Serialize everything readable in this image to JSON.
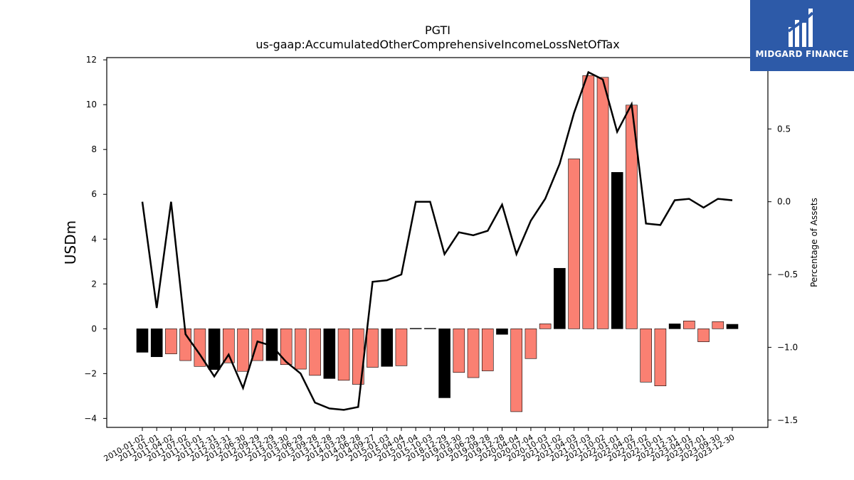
{
  "chart_data": {
    "type": "bar",
    "title": "PGTI",
    "subtitle": "us-gaap:AccumulatedOtherComprehensiveIncomeLossNetOfTax",
    "ylabel": "USDm",
    "y2label": "Percentage of Assets",
    "ylim": [
      -4.4,
      12.1
    ],
    "y2lim": [
      -1.55,
      0.99
    ],
    "yticks": [
      -4,
      -2,
      0,
      2,
      4,
      6,
      8,
      10,
      12
    ],
    "y2ticks": [
      -1.5,
      -1.0,
      -0.5,
      0.0,
      0.5
    ],
    "categories": [
      "2010-01-02",
      "2011-01-01",
      "2011-04-02",
      "2011-07-02",
      "2011-10-01",
      "2011-12-31",
      "2012-03-31",
      "2012-06-30",
      "2012-09-29",
      "2012-12-29",
      "2013-03-30",
      "2013-06-29",
      "2013-09-28",
      "2013-12-28",
      "2014-03-29",
      "2014-06-28",
      "2014-09-27",
      "2015-01-03",
      "2015-04-04",
      "2015-07-04",
      "2015-10-03",
      "2018-12-29",
      "2019-03-30",
      "2019-06-29",
      "2019-09-28",
      "2019-12-28",
      "2020-04-04",
      "2020-07-04",
      "2020-10-03",
      "2021-01-02",
      "2021-04-03",
      "2021-07-03",
      "2021-10-02",
      "2022-01-01",
      "2022-04-02",
      "2022-07-02",
      "2022-10-01",
      "2022-12-31",
      "2023-04-01",
      "2023-07-01",
      "2023-09-30",
      "2023-12-30"
    ],
    "series": [
      {
        "values": [
          -1.05,
          -1.25,
          -1.12,
          -1.42,
          -1.68,
          -1.82,
          -1.52,
          -1.9,
          -1.42,
          -1.42,
          -1.6,
          -1.8,
          -2.08,
          -2.22,
          -2.3,
          -2.48,
          -1.72,
          -1.68,
          -1.65,
          0.02,
          0.02,
          -3.08,
          -1.95,
          -2.18,
          -1.88,
          -0.25,
          -3.7,
          -1.33,
          0.22,
          2.7,
          7.58,
          11.3,
          11.22,
          6.98,
          9.98,
          -2.38,
          -2.55,
          0.22,
          0.35,
          -0.58,
          0.32,
          0.2
        ],
        "colors": [
          "#000000",
          "#000000",
          "#fa8072",
          "#fa8072",
          "#fa8072",
          "#000000",
          "#fa8072",
          "#fa8072",
          "#fa8072",
          "#000000",
          "#fa8072",
          "#fa8072",
          "#fa8072",
          "#000000",
          "#fa8072",
          "#fa8072",
          "#fa8072",
          "#000000",
          "#fa8072",
          "#000000",
          "#000000",
          "#000000",
          "#fa8072",
          "#fa8072",
          "#fa8072",
          "#000000",
          "#fa8072",
          "#fa8072",
          "#fa8072",
          "#000000",
          "#fa8072",
          "#fa8072",
          "#fa8072",
          "#000000",
          "#fa8072",
          "#fa8072",
          "#fa8072",
          "#000000",
          "#fa8072",
          "#fa8072",
          "#fa8072",
          "#000000"
        ]
      },
      {
        "axis": "right",
        "type": "line",
        "values": [
          0.0,
          -0.73,
          0.0,
          -0.91,
          -1.05,
          -1.2,
          -1.05,
          -1.28,
          -0.96,
          -0.99,
          -1.1,
          -1.18,
          -1.38,
          -1.42,
          -1.43,
          -1.41,
          -0.55,
          -0.54,
          -0.5,
          0.0,
          0.0,
          -0.36,
          -0.21,
          -0.23,
          -0.2,
          -0.02,
          -0.36,
          -0.13,
          0.02,
          0.26,
          0.61,
          0.89,
          0.84,
          0.48,
          0.67,
          -0.15,
          -0.16,
          0.01,
          0.02,
          -0.04,
          0.02,
          0.01
        ]
      }
    ],
    "grid": false,
    "legend": "none"
  },
  "brand": {
    "name": "MIDGARD FINANCE",
    "color": "#2d5aa8"
  }
}
